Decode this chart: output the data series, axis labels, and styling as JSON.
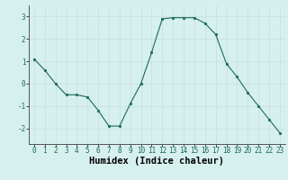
{
  "x": [
    0,
    1,
    2,
    3,
    4,
    5,
    6,
    7,
    8,
    9,
    10,
    11,
    12,
    13,
    14,
    15,
    16,
    17,
    18,
    19,
    20,
    21,
    22,
    23
  ],
  "y": [
    1.1,
    0.6,
    0.0,
    -0.5,
    -0.5,
    -0.6,
    -1.2,
    -1.9,
    -1.9,
    -0.9,
    0.0,
    1.4,
    2.9,
    2.95,
    2.95,
    2.95,
    2.7,
    2.2,
    0.9,
    0.3,
    -0.4,
    -1.0,
    -1.6,
    -2.2
  ],
  "xlabel": "Humidex (Indice chaleur)",
  "xlim": [
    -0.5,
    23.5
  ],
  "ylim": [
    -2.7,
    3.5
  ],
  "yticks": [
    -2,
    -1,
    0,
    1,
    2,
    3
  ],
  "xticks": [
    0,
    1,
    2,
    3,
    4,
    5,
    6,
    7,
    8,
    9,
    10,
    11,
    12,
    13,
    14,
    15,
    16,
    17,
    18,
    19,
    20,
    21,
    22,
    23
  ],
  "line_color": "#1a6b5a",
  "marker_color": "#1a6b5a",
  "bg_color": "#d6f0ee",
  "grid_color": "#c8dedd",
  "xlabel_fontsize": 7.5,
  "tick_fontsize": 5.5
}
